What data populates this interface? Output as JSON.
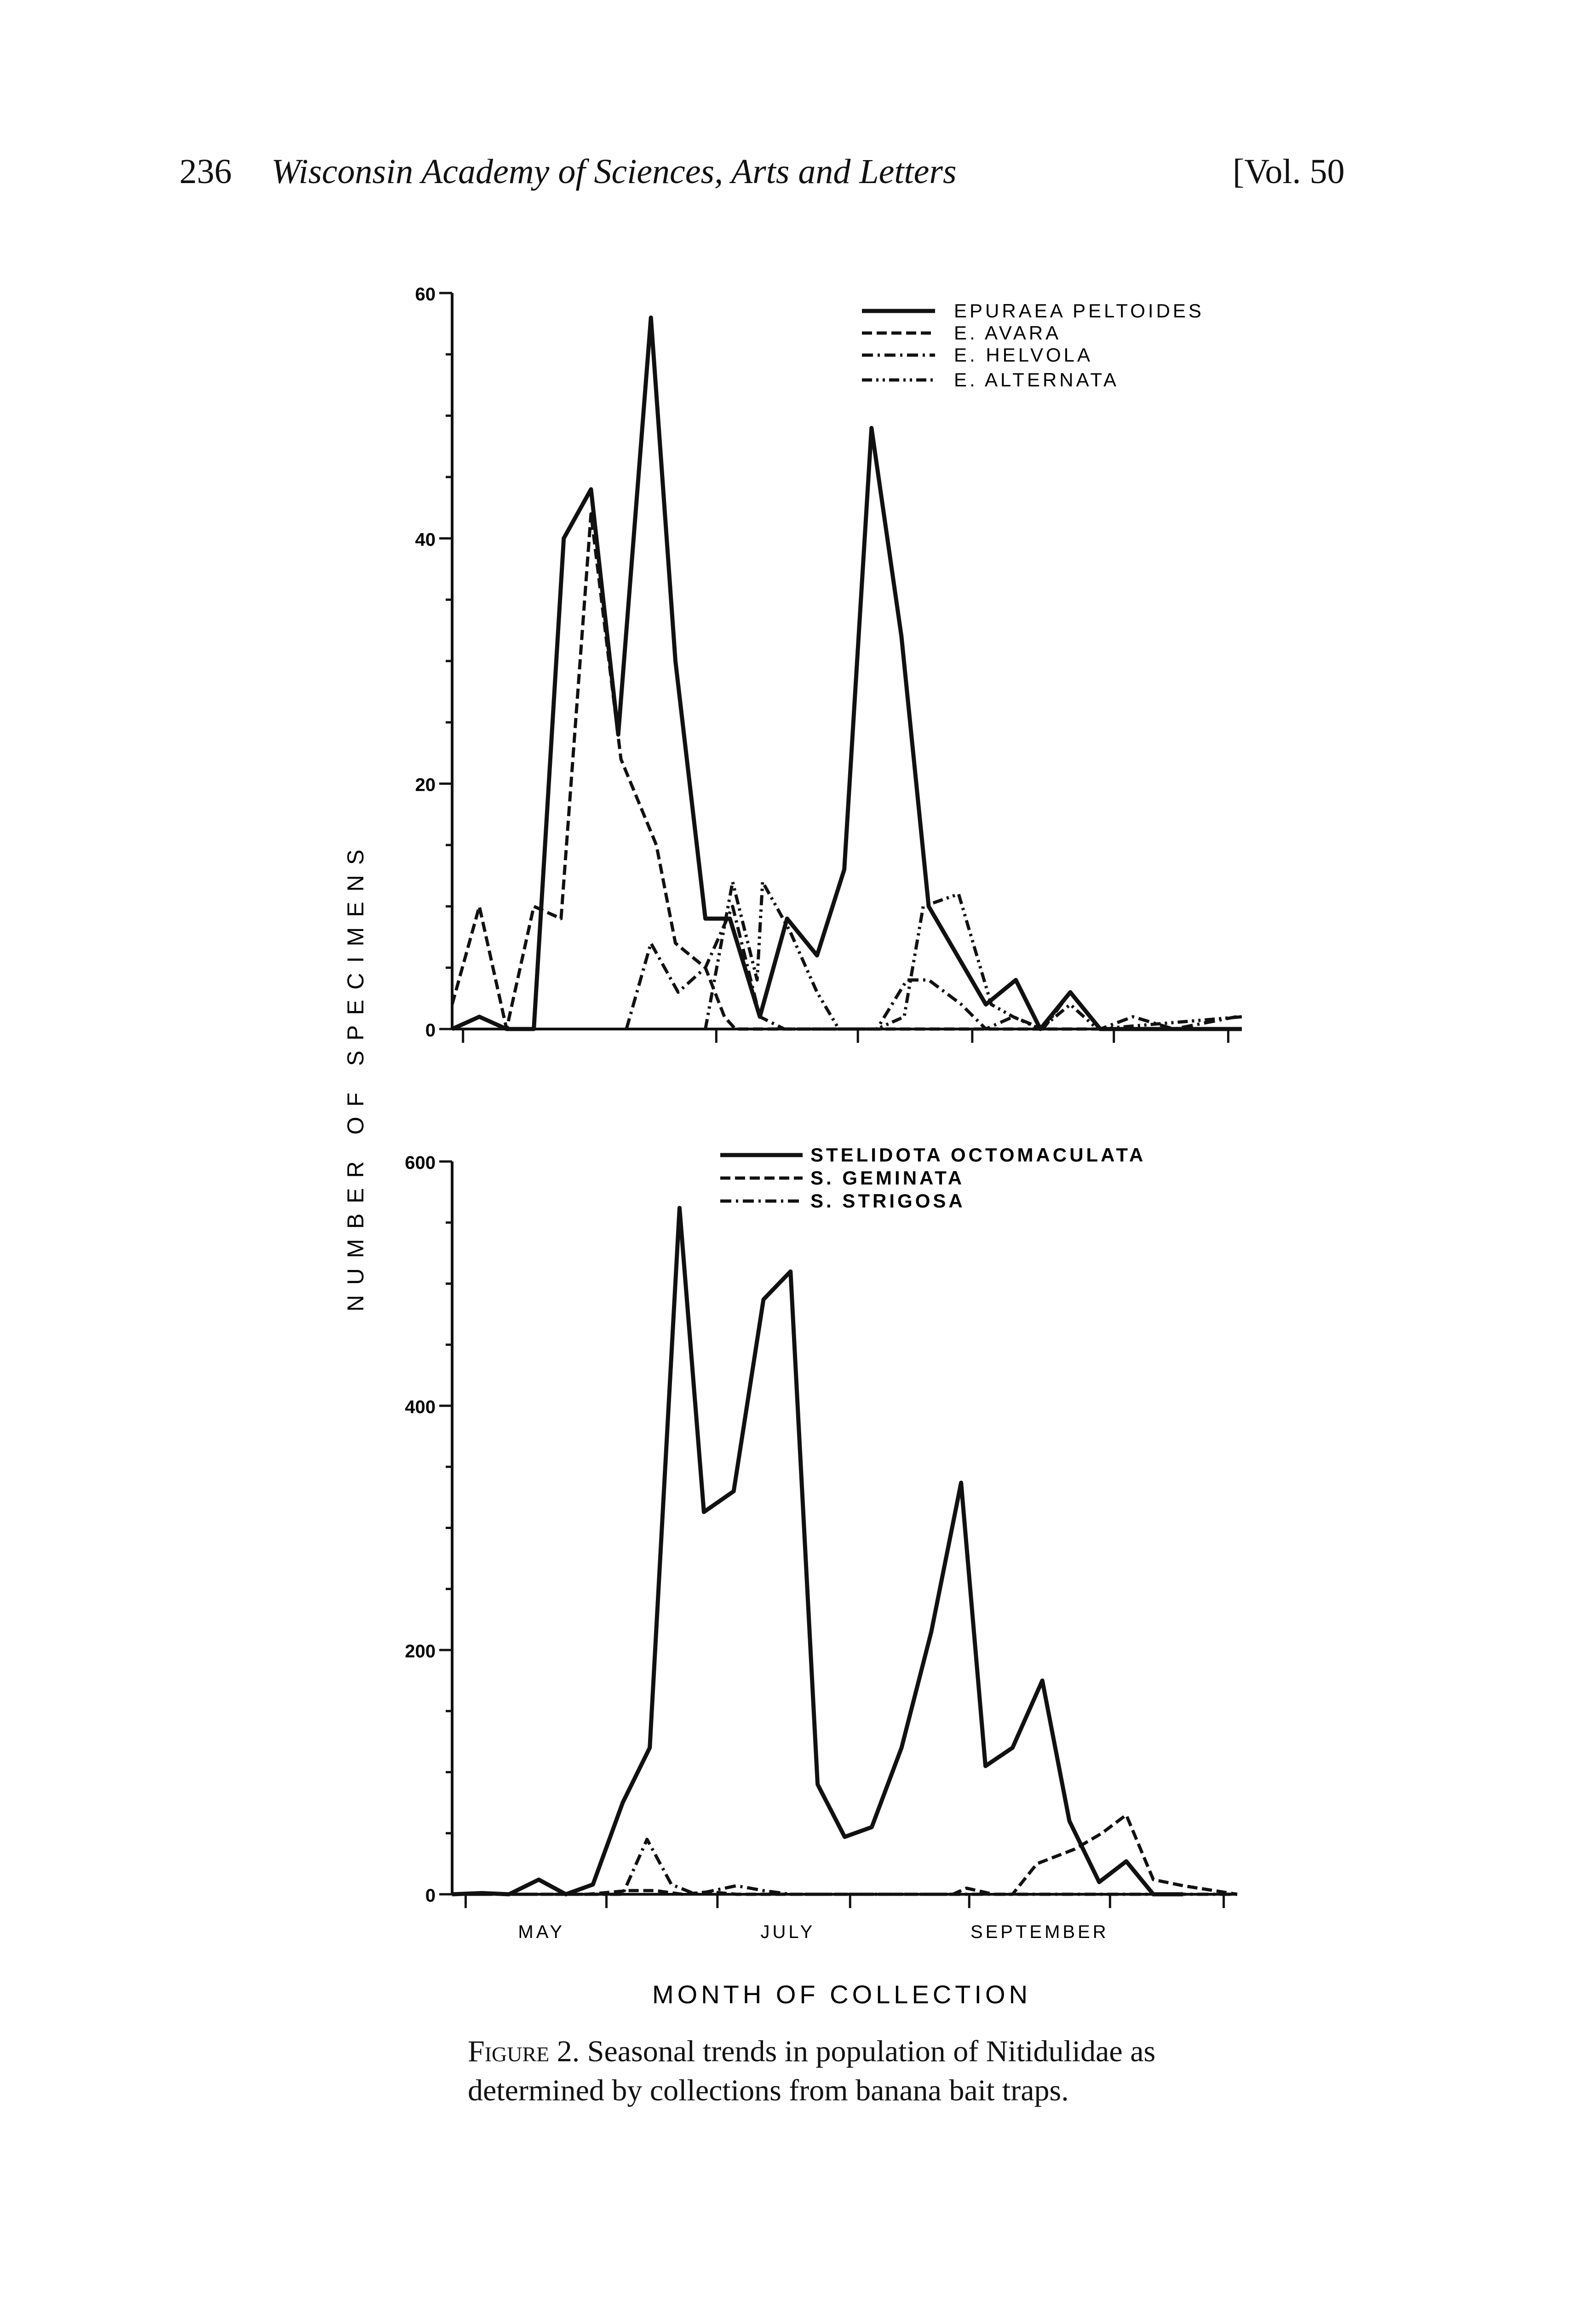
{
  "header": {
    "page_number": "236",
    "journal": "Wisconsin Academy of Sciences, Arts and Letters",
    "volume": "[Vol. 50"
  },
  "y_axis_label": "NUMBER OF SPECIMENS",
  "x_axis_label": "MONTH OF COLLECTION",
  "caption": {
    "label": "Figure 2.",
    "line1": "Seasonal trends in population of Nitidulidae as",
    "line2": "determined by collections from banana bait traps."
  },
  "chart_data": [
    {
      "type": "line",
      "title": "",
      "ylabel": "NUMBER OF SPECIMENS",
      "xlabel": "",
      "ylim": [
        0,
        60
      ],
      "xlim": [
        0,
        29
      ],
      "yticks": [
        0,
        20,
        40,
        60
      ],
      "ytick_labels": [
        "0",
        "20",
        "40",
        "60"
      ],
      "xticks": [
        0.4,
        9.7,
        14.9,
        19.1,
        24.3,
        28.5
      ],
      "legend": "top-right",
      "series": [
        {
          "name": "EPURAEA PELTOIDES",
          "style": "solid",
          "points": [
            [
              0,
              0
            ],
            [
              1,
              1
            ],
            [
              2,
              0
            ],
            [
              3,
              0
            ],
            [
              4.1,
              40
            ],
            [
              5.1,
              44
            ],
            [
              6.1,
              24
            ],
            [
              7.3,
              58
            ],
            [
              8.2,
              30
            ],
            [
              9.3,
              9
            ],
            [
              10.2,
              9
            ],
            [
              11.3,
              1
            ],
            [
              12.3,
              9
            ],
            [
              13.4,
              6
            ],
            [
              14.4,
              13
            ],
            [
              15.4,
              49
            ],
            [
              16.5,
              32
            ],
            [
              17.5,
              10
            ],
            [
              19.6,
              2
            ],
            [
              20.7,
              4
            ],
            [
              21.6,
              0
            ],
            [
              22.7,
              3
            ],
            [
              23.8,
              0
            ],
            [
              29,
              0
            ]
          ]
        },
        {
          "name": "E. AVARA",
          "style": "dashed",
          "points": [
            [
              0,
              2
            ],
            [
              1,
              10
            ],
            [
              2,
              0
            ],
            [
              3,
              10
            ],
            [
              4,
              9
            ],
            [
              5.1,
              42
            ],
            [
              6.2,
              22
            ],
            [
              7.5,
              15
            ],
            [
              8.2,
              7
            ],
            [
              9.3,
              5
            ],
            [
              10,
              1
            ],
            [
              10.4,
              0
            ],
            [
              29,
              0
            ]
          ]
        },
        {
          "name": "E. HELVOLA",
          "style": "dashdot",
          "points": [
            [
              6.4,
              0
            ],
            [
              7.3,
              7
            ],
            [
              8.3,
              3
            ],
            [
              9.3,
              5
            ],
            [
              10.3,
              10
            ],
            [
              11.3,
              1
            ],
            [
              12.2,
              0
            ],
            [
              15.6,
              0
            ],
            [
              16.7,
              4
            ],
            [
              17.5,
              4
            ],
            [
              18.7,
              2
            ],
            [
              19.6,
              0
            ],
            [
              20.6,
              1
            ],
            [
              21.7,
              0
            ],
            [
              22.7,
              3
            ],
            [
              23.8,
              0
            ],
            [
              25,
              1
            ],
            [
              26.5,
              0
            ],
            [
              28.8,
              1
            ]
          ]
        },
        {
          "name": "E. ALTERNATA",
          "style": "dashdotdot",
          "points": [
            [
              9.3,
              0
            ],
            [
              10.3,
              12
            ],
            [
              11.2,
              4
            ],
            [
              11.4,
              12
            ],
            [
              12.4,
              8
            ],
            [
              13.4,
              3
            ],
            [
              14.2,
              0
            ],
            [
              15.6,
              0
            ],
            [
              16.6,
              1
            ],
            [
              17.3,
              10
            ],
            [
              18.6,
              11
            ],
            [
              19.8,
              2
            ],
            [
              20.6,
              1
            ],
            [
              21.6,
              0
            ],
            [
              22.7,
              2
            ],
            [
              23.7,
              0
            ],
            [
              29,
              1
            ]
          ]
        }
      ]
    },
    {
      "type": "line",
      "title": "",
      "ylabel": "NUMBER OF SPECIMENS",
      "xlabel": "MONTH OF COLLECTION",
      "ylim": [
        0,
        600
      ],
      "xlim": [
        0,
        29
      ],
      "yticks": [
        0,
        200,
        400,
        600
      ],
      "ytick_labels": [
        "0",
        "200",
        "400",
        "600"
      ],
      "xticks": [
        0.5,
        5.7,
        9.8,
        14.7,
        19.1,
        24.3,
        28.5
      ],
      "month_labels": [
        {
          "x": 3.3,
          "label": "MAY"
        },
        {
          "x": 12.4,
          "label": "JULY"
        },
        {
          "x": 21.7,
          "label": "SEPTEMBER"
        }
      ],
      "legend": "top-right",
      "series": [
        {
          "name": "STELIDOTA OCTOMACULATA",
          "style": "solid",
          "points": [
            [
              0,
              0
            ],
            [
              1.1,
              1
            ],
            [
              2.1,
              0
            ],
            [
              3.2,
              12
            ],
            [
              4.2,
              0
            ],
            [
              5.2,
              8
            ],
            [
              6.3,
              75
            ],
            [
              7.3,
              120
            ],
            [
              8.4,
              562
            ],
            [
              9.3,
              313
            ],
            [
              10.4,
              330
            ],
            [
              11.5,
              487
            ],
            [
              12.5,
              510
            ],
            [
              13.5,
              90
            ],
            [
              14.5,
              47
            ],
            [
              15.5,
              55
            ],
            [
              16.6,
              120
            ],
            [
              17.7,
              215
            ],
            [
              18.8,
              337
            ],
            [
              19.7,
              105
            ],
            [
              20.7,
              120
            ],
            [
              21.8,
              175
            ],
            [
              22.8,
              60
            ],
            [
              23.9,
              10
            ],
            [
              24.9,
              27
            ],
            [
              25.9,
              0
            ],
            [
              27,
              0
            ]
          ]
        },
        {
          "name": "S. GEMINATA",
          "style": "dashed",
          "points": [
            [
              0,
              0
            ],
            [
              5,
              0
            ],
            [
              6.5,
              3
            ],
            [
              7.5,
              3
            ],
            [
              8.5,
              0
            ],
            [
              9.5,
              2
            ],
            [
              10.5,
              0
            ],
            [
              18.5,
              0
            ],
            [
              19,
              5
            ],
            [
              20,
              0
            ],
            [
              20.7,
              0
            ],
            [
              21.6,
              25
            ],
            [
              23,
              37
            ],
            [
              24,
              50
            ],
            [
              24.9,
              65
            ],
            [
              25.9,
              12
            ],
            [
              27,
              7
            ],
            [
              29,
              0
            ]
          ]
        },
        {
          "name": "S. STRIGOSA",
          "style": "dashdot",
          "points": [
            [
              0,
              0
            ],
            [
              6.3,
              0
            ],
            [
              7.2,
              45
            ],
            [
              8.1,
              8
            ],
            [
              9,
              0
            ],
            [
              10.5,
              7
            ],
            [
              11.5,
              3
            ],
            [
              12.5,
              0
            ],
            [
              29,
              0
            ]
          ]
        }
      ]
    }
  ]
}
